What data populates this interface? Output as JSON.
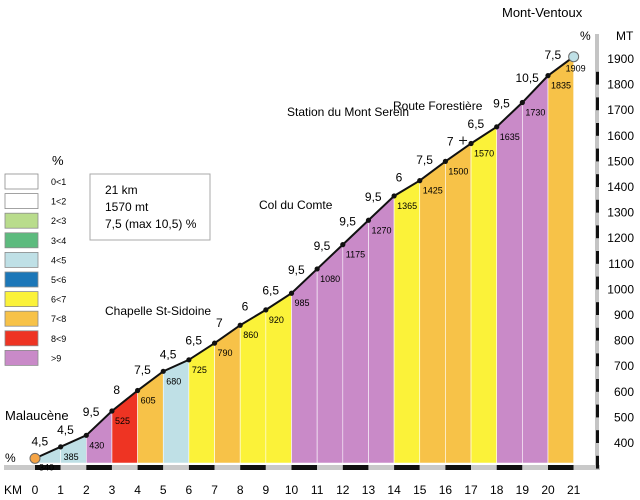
{
  "chart_data": {
    "type": "area",
    "title": "",
    "x_unit_label": "KM",
    "y_unit_label": "MT",
    "percent_label_top": "%",
    "percent_label_bottom": "%",
    "x": [
      0,
      1,
      2,
      3,
      4,
      5,
      6,
      7,
      8,
      9,
      10,
      11,
      12,
      13,
      14,
      15,
      16,
      17,
      18,
      19,
      20,
      21
    ],
    "elevation": [
      340,
      385,
      430,
      525,
      605,
      680,
      725,
      790,
      860,
      920,
      985,
      1080,
      1175,
      1270,
      1365,
      1425,
      1500,
      1570,
      1635,
      1730,
      1835,
      1909
    ],
    "elevation_labels": [
      "340",
      "385",
      "430",
      "525",
      "605",
      "680",
      "725",
      "790",
      "860",
      "920",
      "985",
      "1080",
      "1175",
      "1270",
      "1365",
      "1425",
      "1500",
      "1570",
      "1635",
      "1730",
      "1835",
      "1909"
    ],
    "gradients": [
      "4,5",
      "4,5",
      "9,5",
      "8",
      "7,5",
      "4,5",
      "6,5",
      "7",
      "6",
      "6,5",
      "9,5",
      "9,5",
      "9,5",
      "9,5",
      "6",
      "7,5",
      "7",
      "6,5",
      "9,5",
      "10,5",
      "7,5"
    ],
    "segment_colors": [
      "#bfe0e6",
      "#bfe0e6",
      "#c98ac8",
      "#ee3423",
      "#f7c248",
      "#bfe0e6",
      "#fbf239",
      "#f7c248",
      "#fbf239",
      "#fbf239",
      "#c98ac8",
      "#c98ac8",
      "#c98ac8",
      "#c98ac8",
      "#fbf239",
      "#f7c248",
      "#f7c248",
      "#fbf239",
      "#c98ac8",
      "#c98ac8",
      "#f7c248"
    ],
    "y_ticks": [
      400,
      500,
      600,
      700,
      800,
      900,
      1000,
      1100,
      1200,
      1300,
      1400,
      1500,
      1600,
      1700,
      1800,
      1900
    ],
    "y_tick_labels": [
      "400",
      "500",
      "600",
      "700",
      "800",
      "900",
      "1000",
      "1100",
      "1200",
      "1300",
      "1400",
      "1500",
      "1600",
      "1700",
      "1800",
      "1900"
    ],
    "x_tick_labels": [
      "0",
      "1",
      "2",
      "3",
      "4",
      "5",
      "6",
      "7",
      "8",
      "9",
      "10",
      "11",
      "12",
      "13",
      "14",
      "15",
      "16",
      "17",
      "18",
      "19",
      "20",
      "21"
    ],
    "ylim": [
      250,
      1960
    ],
    "xlim": [
      0,
      21
    ],
    "places": [
      {
        "name": "Malaucène",
        "km": 0
      },
      {
        "name": "Chapelle St-Sidoine",
        "km": 5.6
      },
      {
        "name": "Col du Comte",
        "km": 10
      },
      {
        "name": "Station du Mont Serein",
        "km": 14
      },
      {
        "name": "Route Forestière",
        "km": 16.7
      },
      {
        "name": "Mont-Ventoux",
        "km": 21
      }
    ],
    "legend": {
      "title": "%",
      "placement": "left",
      "entries": [
        {
          "label": "0<1",
          "color": "#ffffff"
        },
        {
          "label": "1<2",
          "color": "#ffffff"
        },
        {
          "label": "2<3",
          "color": "#b9dc8c"
        },
        {
          "label": "3<4",
          "color": "#5dbb7e"
        },
        {
          "label": "4<5",
          "color": "#bfe0e6"
        },
        {
          "label": "5<6",
          "color": "#1c77b8"
        },
        {
          "label": "6<7",
          "color": "#fbf239"
        },
        {
          "label": "7<8",
          "color": "#f7c248"
        },
        {
          "label": "8<9",
          "color": "#ee3423"
        },
        {
          "label": ">9",
          "color": "#c98ac8"
        }
      ]
    },
    "info_box": {
      "distance": "21 km",
      "climb": "1570 mt",
      "gradient": "7,5 (max 10,5) %"
    }
  }
}
